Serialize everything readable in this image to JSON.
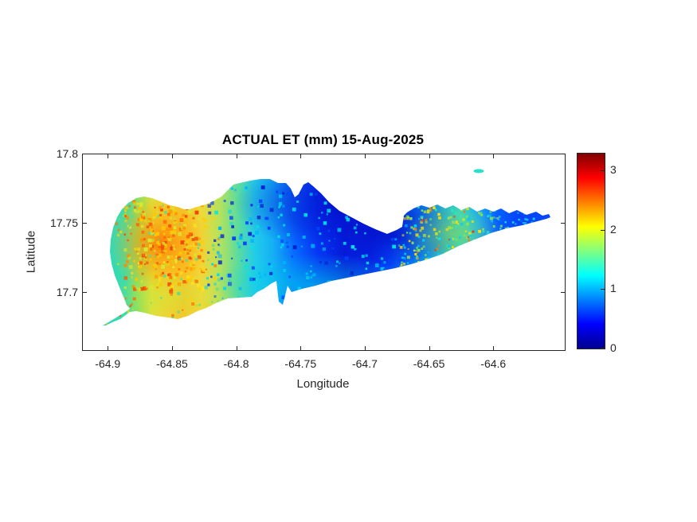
{
  "chart_data": {
    "type": "heatmap",
    "title": "ACTUAL ET (mm) 15-Aug-2025",
    "variable": "actual evapotranspiration (mm)",
    "date": "15-Aug-2025",
    "xlabel": "Longitude",
    "ylabel": "Latitude",
    "xlim": [
      -64.92,
      -64.545
    ],
    "ylim": [
      17.659,
      17.8
    ],
    "x_ticks": [
      -64.9,
      -64.85,
      -64.8,
      -64.75,
      -64.7,
      -64.65,
      -64.6
    ],
    "x_tick_labels": [
      "-64.9",
      "-64.85",
      "-64.8",
      "-64.75",
      "-64.7",
      "-64.65",
      "-64.6"
    ],
    "y_ticks": [
      17.8,
      17.75,
      17.7
    ],
    "y_tick_labels": [
      "17.8",
      "17.75",
      "17.7"
    ],
    "grid": false,
    "colormap": "jet",
    "colorbar": {
      "position": "right",
      "range": [
        0,
        3.28
      ],
      "ticks": [
        0,
        1,
        2,
        3
      ],
      "tick_labels": [
        "0",
        "1",
        "2",
        "3"
      ],
      "top_color": "#800000",
      "bottom_color": "#00008f"
    },
    "regions": [
      {
        "area": "west end (lon -64.90 to -64.84, lat 17.69 to 17.77)",
        "et_mm": "1.7 to 2.8, orange-red hotspots near 3"
      },
      {
        "area": "southwest point spit (lon ~-64.90, lat ~17.68)",
        "et_mm": "speckled 1 to 3, red-orange along spit"
      },
      {
        "area": "central (lon -64.83 to -64.72)",
        "et_mm": "0.1 to 0.7, deep blue; cyan speckles ~1 along south coast"
      },
      {
        "area": "east-central (lon -64.70 to -64.63)",
        "et_mm": "1.0 to 1.9 cyan-green, isolated pixels 2.5 to 3"
      },
      {
        "area": "east tip (lon -64.62 to -64.56)",
        "et_mm": "0.4 to 0.9 blue with cyan patches"
      },
      {
        "area": "small islet north of island (lon ~-64.62, lat ~17.79)",
        "et_mm": "~1.2 cyan"
      }
    ]
  }
}
